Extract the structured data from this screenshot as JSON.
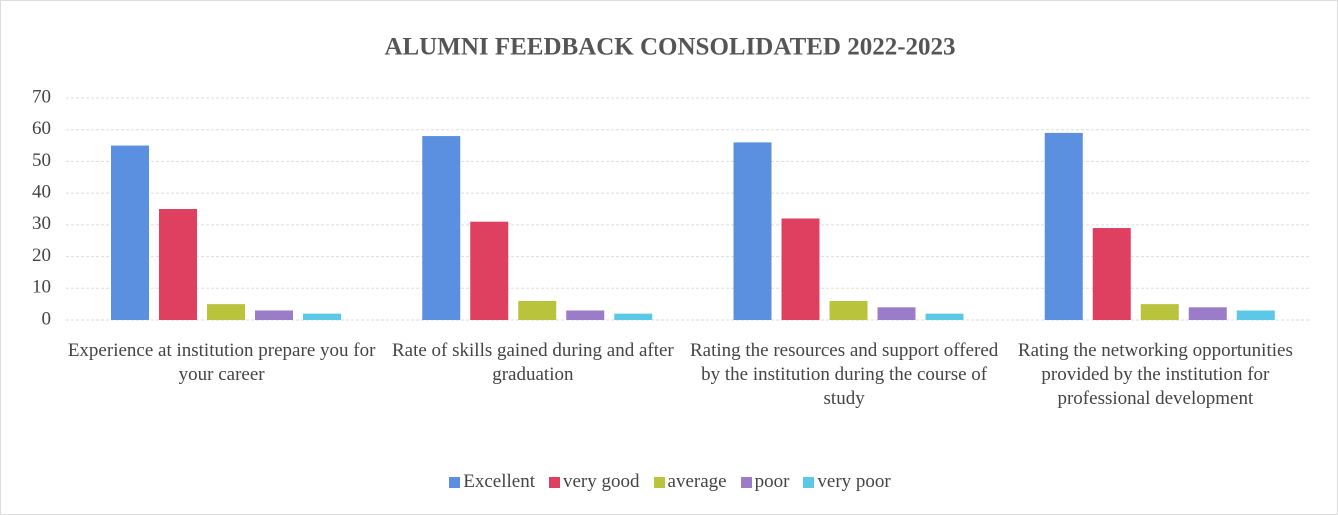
{
  "chart_data": {
    "type": "bar",
    "title": "ALUMNI  FEEDBACK CONSOLIDATED 2022-2023",
    "categories": [
      "Experience at institution prepare you for your career",
      "Rate of skills gained during and after graduation",
      "Rating the resources and support offered by the institution during the course of study",
      "Rating the networking opportunities provided  by the institution for professional development"
    ],
    "series": [
      {
        "name": "Excellent",
        "color": "#5b8fe0",
        "values": [
          55,
          58,
          56,
          59
        ]
      },
      {
        "name": "very good",
        "color": "#e0405f",
        "values": [
          35,
          31,
          32,
          29
        ]
      },
      {
        "name": "average",
        "color": "#b9c43c",
        "values": [
          5,
          6,
          6,
          5
        ]
      },
      {
        "name": "poor",
        "color": "#9b7cc8",
        "values": [
          3,
          3,
          4,
          4
        ]
      },
      {
        "name": "very poor",
        "color": "#5cc8e8",
        "values": [
          2,
          2,
          2,
          3
        ]
      }
    ],
    "ylim": [
      0,
      70
    ],
    "yticks": [
      0,
      10,
      20,
      30,
      40,
      50,
      60,
      70
    ],
    "grid": true,
    "legend": "bottom"
  }
}
